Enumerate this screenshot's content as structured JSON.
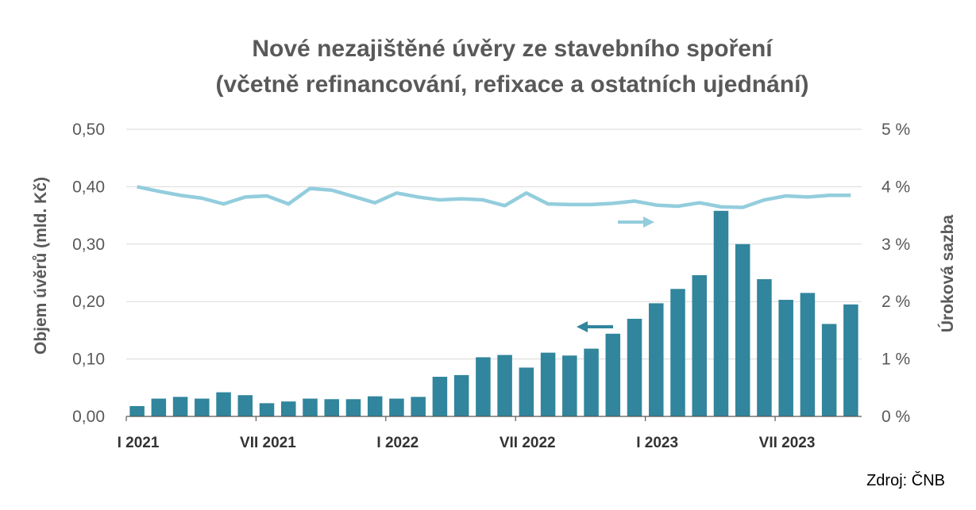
{
  "chart_data": {
    "type": "bar+line",
    "title": [
      "Nové nezajištěné úvěry ze stavebního spoření",
      "(včetně refinancování, refixace a ostatních ujednání)"
    ],
    "ylabel_left": "Objem úvěrů (mld. Kč)",
    "ylabel_right": "Úroková sazba",
    "source": "Zdroj: ČNB",
    "y_left": {
      "min": 0,
      "max": 0.5,
      "ticks": [
        "0,00",
        "0,10",
        "0,20",
        "0,30",
        "0,40",
        "0,50"
      ]
    },
    "y_right": {
      "min": 0,
      "max": 5,
      "ticks": [
        "0 %",
        "1 %",
        "2 %",
        "3 %",
        "4 %",
        "5 %"
      ]
    },
    "x_tick_labels": [
      {
        "index": 0,
        "label": "I 2021"
      },
      {
        "index": 6,
        "label": "VII 2021"
      },
      {
        "index": 12,
        "label": "I 2022"
      },
      {
        "index": 18,
        "label": "VII 2022"
      },
      {
        "index": 24,
        "label": "I 2023"
      },
      {
        "index": 30,
        "label": "VII 2023"
      }
    ],
    "series": [
      {
        "type": "bar",
        "axis": "left",
        "color": "#31859c",
        "values": [
          0.018,
          0.031,
          0.034,
          0.031,
          0.042,
          0.037,
          0.023,
          0.026,
          0.031,
          0.03,
          0.03,
          0.035,
          0.031,
          0.034,
          0.069,
          0.072,
          0.103,
          0.107,
          0.085,
          0.111,
          0.106,
          0.118,
          0.144,
          0.17,
          0.197,
          0.222,
          0.246,
          0.358,
          0.3,
          0.239,
          0.203,
          0.215,
          0.161,
          0.195
        ]
      },
      {
        "type": "line",
        "axis": "right",
        "color": "#93cddd",
        "values": [
          4.0,
          3.92,
          3.85,
          3.8,
          3.7,
          3.82,
          3.84,
          3.7,
          3.97,
          3.94,
          3.83,
          3.72,
          3.89,
          3.82,
          3.77,
          3.79,
          3.77,
          3.67,
          3.89,
          3.7,
          3.69,
          3.69,
          3.71,
          3.75,
          3.68,
          3.66,
          3.72,
          3.65,
          3.64,
          3.77,
          3.84,
          3.82,
          3.85,
          3.85
        ]
      }
    ],
    "annotations": [
      {
        "arrow": "right",
        "meaning": "line uses right axis",
        "color": "#93cddd"
      },
      {
        "arrow": "left",
        "meaning": "bars use left axis",
        "color": "#31859c"
      }
    ]
  }
}
